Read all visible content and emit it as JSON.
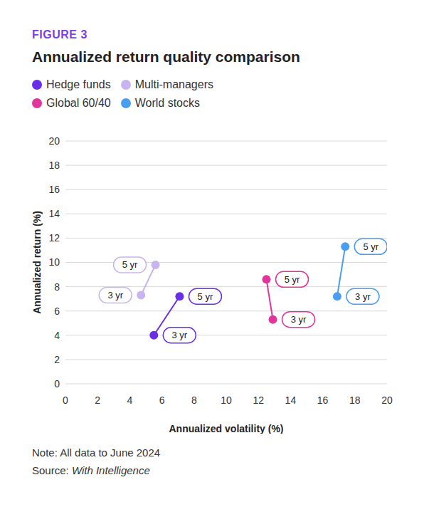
{
  "chart_data": {
    "type": "scatter",
    "label": "FIGURE 3",
    "title": "Annualized return quality comparison",
    "x_label": "Annualized volatility (%)",
    "y_label": "Annualized return (%)",
    "xlim": [
      0,
      20
    ],
    "xticks": [
      0,
      2,
      4,
      6,
      8,
      10,
      12,
      14,
      16,
      18,
      20
    ],
    "ylim": [
      0,
      20
    ],
    "yticks": [
      0,
      2,
      4,
      6,
      8,
      10,
      12,
      14,
      16,
      18,
      20
    ],
    "grid": true,
    "legend": "top-left",
    "marker": "circle",
    "line_style": "solid",
    "series": [
      {
        "name": "Hedge funds",
        "color": "#6a2ee8",
        "x": [
          5.5,
          7.1
        ],
        "values": [
          4,
          7.2
        ],
        "point_labels": [
          "3 yr",
          "5 yr"
        ]
      },
      {
        "name": "Multi-managers",
        "color": "#c8b4f0",
        "x": [
          4.7,
          5.6
        ],
        "values": [
          7.3,
          9.8
        ],
        "point_labels": [
          "3 yr",
          "5 yr"
        ]
      },
      {
        "name": "Global 60/40",
        "color": "#e0359b",
        "x": [
          12.9,
          12.5
        ],
        "values": [
          5.3,
          8.6
        ],
        "point_labels": [
          "3 yr",
          "5 yr"
        ]
      },
      {
        "name": "World stocks",
        "color": "#4a9ef0",
        "x": [
          16.9,
          17.4
        ],
        "values": [
          7.2,
          11.3
        ],
        "point_labels": [
          "3 yr",
          "5 yr"
        ]
      }
    ],
    "note_label": "Note:",
    "note": "All data to June 2024",
    "source_label": "Source:",
    "source": "With Intelligence"
  }
}
